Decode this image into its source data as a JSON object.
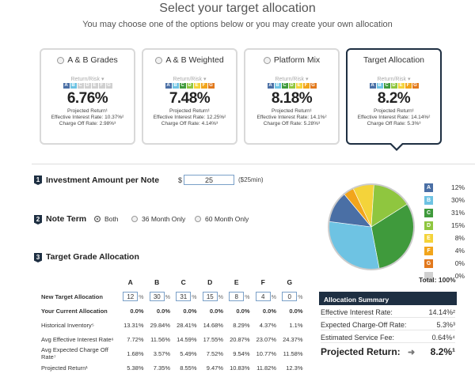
{
  "header": {
    "title": "Select your target allocation",
    "subtitle": "You may choose one of the options below or you may create your own allocation"
  },
  "grade_colors": {
    "A": "#4a6fa5",
    "B": "#6ec3e3",
    "C": "#3f9a3c",
    "D": "#8fc63f",
    "E": "#f4d33a",
    "F": "#f2a51b",
    "G": "#e2791d",
    "none": "#d0d0d0"
  },
  "cards": [
    {
      "label": "A & B Grades",
      "return_risk": "Return/Risk",
      "pct": "6.76%",
      "projected": "Projected Return¹",
      "eff": "Effective Interest Rate: 10.37%²",
      "charge": "Charge Off Rate: 2.98%³",
      "active_grades": [
        "A",
        "B"
      ]
    },
    {
      "label": "A & B Weighted",
      "return_risk": "Return/Risk",
      "pct": "7.48%",
      "projected": "Projected Return¹",
      "eff": "Effective Interest Rate: 12.25%²",
      "charge": "Charge Off Rate: 4.14%³",
      "active_grades": [
        "A",
        "B",
        "C",
        "D",
        "E",
        "F",
        "G"
      ]
    },
    {
      "label": "Platform Mix",
      "return_risk": "Return/Risk",
      "pct": "8.18%",
      "projected": "Projected Return¹",
      "eff": "Effective Interest Rate: 14.1%²",
      "charge": "Charge Off Rate: 5.28%³",
      "active_grades": [
        "A",
        "B",
        "C",
        "D",
        "E",
        "F",
        "G"
      ]
    },
    {
      "label": "Target Allocation",
      "return_risk": "Return/Risk",
      "pct": "8.2%",
      "projected": "Projected Return¹",
      "eff": "Effective Interest Rate: 14.14%²",
      "charge": "Charge Off Rate: 5.3%³",
      "active_grades": [
        "A",
        "B",
        "C",
        "D",
        "E",
        "F",
        "G"
      ]
    }
  ],
  "step1": {
    "num": "1",
    "title": "Investment Amount per Note",
    "currency": "$",
    "amount": "25",
    "note": "($25min)"
  },
  "step2": {
    "num": "2",
    "title": "Note Term",
    "options": [
      "Both",
      "36 Month Only",
      "60 Month Only"
    ],
    "selected": "Both"
  },
  "step3": {
    "num": "3",
    "title": "Target Grade Allocation"
  },
  "table": {
    "columns": [
      "A",
      "B",
      "C",
      "D",
      "E",
      "F",
      "G"
    ],
    "new_target": {
      "label": "New Target Allocation",
      "values": [
        "12",
        "30",
        "31",
        "15",
        "8",
        "4",
        "0"
      ],
      "unit": "%"
    },
    "rows": [
      {
        "label": "Your Current Allocation",
        "bold": true,
        "values": [
          "0.0%",
          "0.0%",
          "0.0%",
          "0.0%",
          "0.0%",
          "0.0%",
          "0.0%"
        ]
      },
      {
        "label": "Historical Inventory⁵",
        "bold": false,
        "values": [
          "13.31%",
          "29.84%",
          "28.41%",
          "14.68%",
          "8.29%",
          "4.37%",
          "1.1%"
        ]
      },
      {
        "label": "Avg Effective Interest Rate⁶",
        "bold": false,
        "values": [
          "7.72%",
          "11.56%",
          "14.59%",
          "17.55%",
          "20.87%",
          "23.07%",
          "24.37%"
        ]
      },
      {
        "label": "Avg Expected Charge Off Rate⁷",
        "bold": false,
        "values": [
          "1.68%",
          "3.57%",
          "5.49%",
          "7.52%",
          "9.54%",
          "10.77%",
          "11.58%"
        ]
      },
      {
        "label": "Projected Return¹",
        "bold": false,
        "values": [
          "5.38%",
          "7.35%",
          "8.55%",
          "9.47%",
          "10.83%",
          "11.82%",
          "12.3%"
        ]
      }
    ]
  },
  "legend": {
    "items": [
      {
        "grade": "A",
        "value": "12%"
      },
      {
        "grade": "B",
        "value": "30%"
      },
      {
        "grade": "C",
        "value": "31%"
      },
      {
        "grade": "D",
        "value": "15%"
      },
      {
        "grade": "E",
        "value": "8%"
      },
      {
        "grade": "F",
        "value": "4%"
      },
      {
        "grade": "G",
        "value": "0%"
      },
      {
        "grade": "",
        "value": "0%"
      }
    ],
    "total": "Total: 100%"
  },
  "chart_data": {
    "type": "pie",
    "categories": [
      "A",
      "B",
      "C",
      "D",
      "E",
      "F",
      "G"
    ],
    "values": [
      12,
      30,
      31,
      15,
      8,
      4,
      0
    ]
  },
  "summary": {
    "title": "Allocation Summary",
    "rows": [
      {
        "label": "Effective Interest Rate:",
        "value": "14.14%²"
      },
      {
        "label": "Expected Charge-Off Rate:",
        "value": "5.3%³"
      },
      {
        "label": "Estimated Service Fee:",
        "value": "0.64%⁴"
      }
    ],
    "final_label": "Projected Return:",
    "final_value": "8.2%¹"
  }
}
